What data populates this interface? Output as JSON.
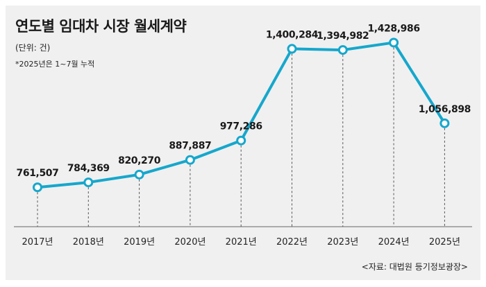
{
  "title": "연도별 임대차 시장 월세계약",
  "unit_note": "(단위: 건)",
  "footnote": "*2025년은 1~7월 누적",
  "source": "<자료: 대법원 등기정보광장>",
  "colors": {
    "line": "#16a7cc",
    "marker_fill": "#ffffff",
    "background": "#f0f0f0"
  },
  "chart_data": {
    "type": "line",
    "title": "연도별 임대차 시장 월세계약",
    "unit": "(단위: 건)",
    "categories": [
      "2017년",
      "2018년",
      "2019년",
      "2020년",
      "2021년",
      "2022년",
      "2023년",
      "2024년",
      "2025년"
    ],
    "series": [
      {
        "values": [
          761507,
          784369,
          820270,
          887887,
          977286,
          1400284,
          1394982,
          1428986,
          1056898
        ],
        "data_labels": [
          "761,507",
          "784,369",
          "820,270",
          "887,887",
          "977,286",
          "1,400,284",
          "1,394,982",
          "1,428,986",
          "1,056,898"
        ]
      }
    ],
    "ylim": [
      580000,
      1440000
    ],
    "grid": false,
    "markers": "hollow circles",
    "vertical_dashed_guides": true
  }
}
